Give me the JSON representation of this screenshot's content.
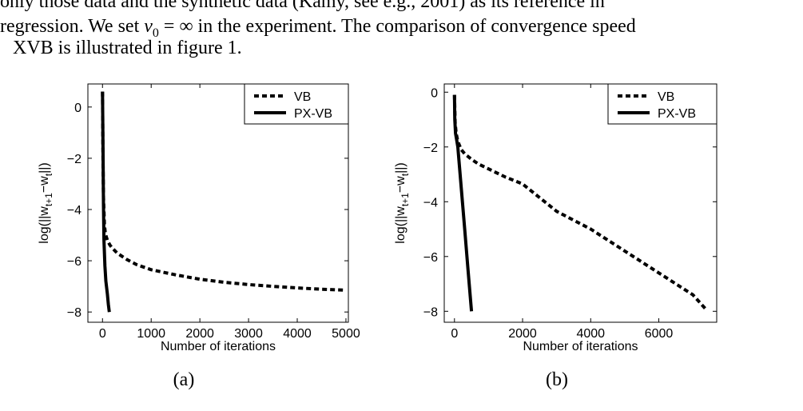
{
  "paragraph": {
    "line1": "only those data and the synthetic data (Kamy, see e.g., 2001) as its reference in",
    "line2_prefix": "regression. We set ",
    "line2_math": "v",
    "line2_sub": "0",
    "line2_mid": " = ∞ in the experiment. The comparison of convergence speed",
    "line3": "XVB is illustrated in figure 1."
  },
  "chart_data": [
    {
      "type": "line",
      "caption": "(a)",
      "xlabel": "Number of iterations",
      "ylabel": "log(||w_{t+1} − w_t||)",
      "xlim": [
        -300,
        5050
      ],
      "ylim": [
        -8.4,
        0.9
      ],
      "xticks": [
        0,
        1000,
        2000,
        3000,
        4000,
        5000
      ],
      "yticks": [
        0,
        -2,
        -4,
        -6,
        -8
      ],
      "grid": false,
      "legend": "top-right",
      "series": [
        {
          "name": "VB",
          "style": "dashed",
          "x": [
            0,
            10,
            20,
            40,
            60,
            100,
            150,
            200,
            300,
            500,
            700,
            1000,
            1500,
            2000,
            2500,
            3000,
            3500,
            4000,
            4500,
            5000
          ],
          "y": [
            0.6,
            -2.0,
            -3.5,
            -4.6,
            -4.95,
            -5.2,
            -5.38,
            -5.5,
            -5.7,
            -5.95,
            -6.15,
            -6.35,
            -6.55,
            -6.72,
            -6.84,
            -6.93,
            -7.0,
            -7.06,
            -7.11,
            -7.15
          ]
        },
        {
          "name": "PX-VB",
          "style": "solid",
          "x": [
            0,
            10,
            20,
            30,
            50,
            70,
            100,
            120,
            140
          ],
          "y": [
            0.6,
            -1.5,
            -3.8,
            -5.2,
            -6.2,
            -6.8,
            -7.3,
            -7.7,
            -8.0
          ]
        }
      ]
    },
    {
      "type": "line",
      "caption": "(b)",
      "xlabel": "Number of iterations",
      "ylabel": "log(||w_{t+1} − w_t||)",
      "xlim": [
        -300,
        7700
      ],
      "ylim": [
        -8.4,
        0.3
      ],
      "xticks": [
        0,
        2000,
        4000,
        6000
      ],
      "yticks": [
        0,
        -2,
        -4,
        -6,
        -8
      ],
      "grid": false,
      "legend": "top-right",
      "series": [
        {
          "name": "VB",
          "style": "dashed",
          "x": [
            0,
            20,
            50,
            100,
            200,
            300,
            500,
            700,
            1000,
            1500,
            2000,
            3000,
            4000,
            5000,
            6000,
            7000,
            7400
          ],
          "y": [
            -0.1,
            -1.1,
            -1.5,
            -1.8,
            -2.1,
            -2.25,
            -2.45,
            -2.62,
            -2.8,
            -3.1,
            -3.35,
            -4.35,
            -5.0,
            -5.8,
            -6.6,
            -7.4,
            -7.95
          ]
        },
        {
          "name": "PX-VB",
          "style": "solid",
          "x": [
            0,
            10,
            30,
            60,
            100,
            200,
            300,
            400,
            500
          ],
          "y": [
            -0.1,
            -1.0,
            -1.5,
            -1.7,
            -2.0,
            -3.5,
            -5.0,
            -6.5,
            -8.0
          ]
        }
      ]
    }
  ]
}
